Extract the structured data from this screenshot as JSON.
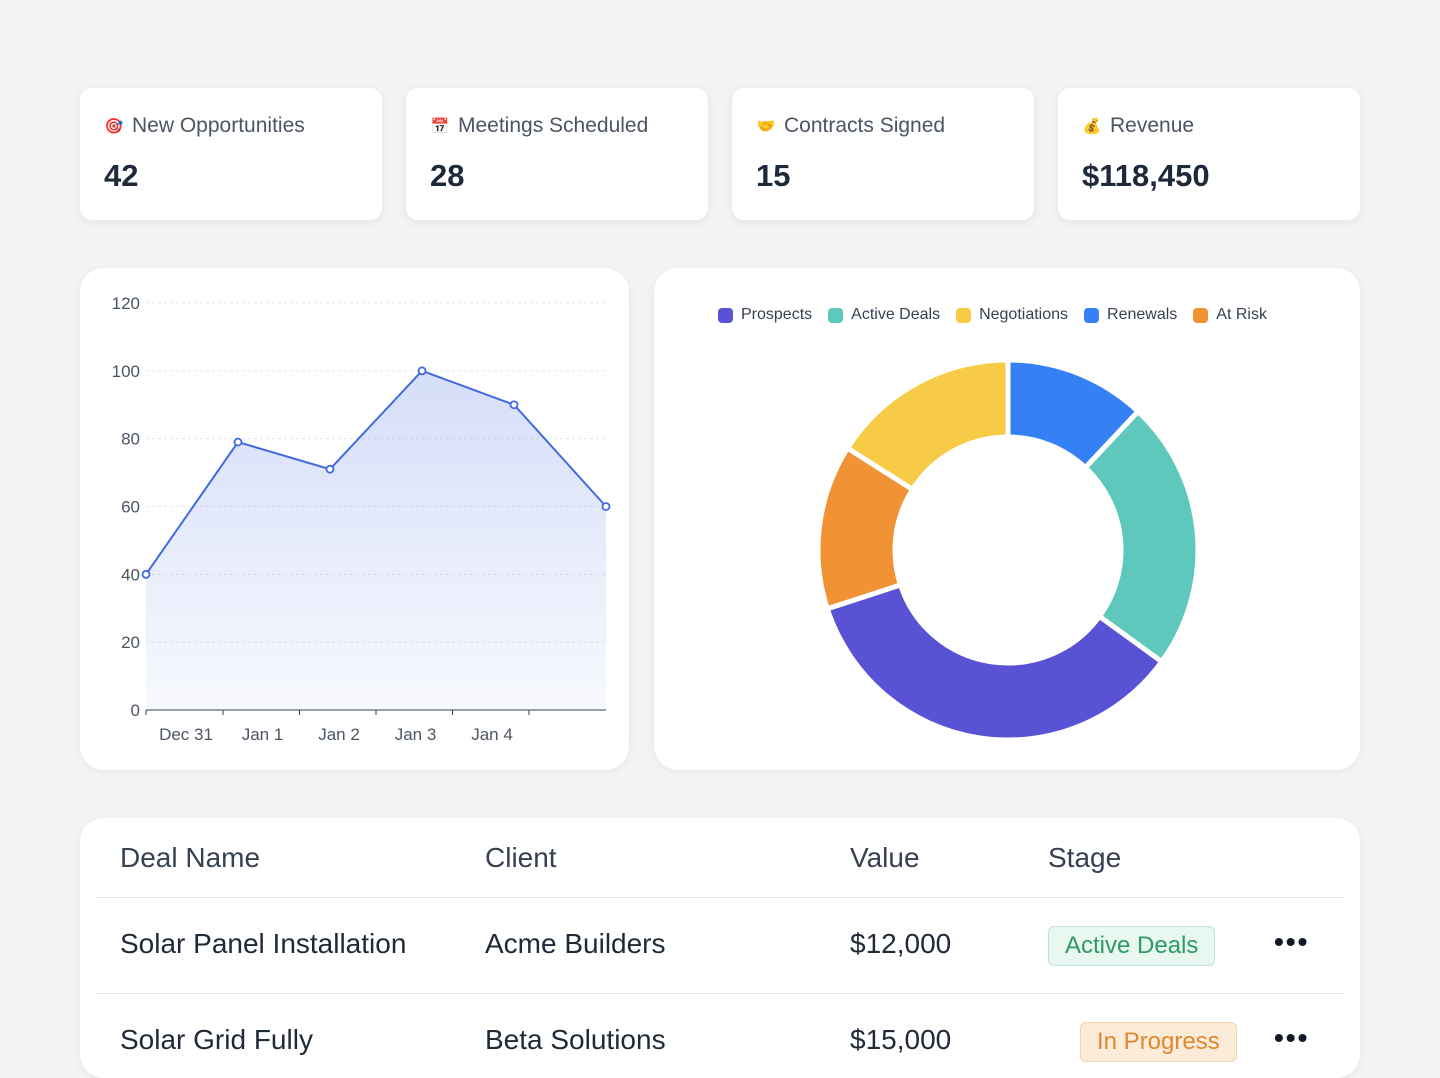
{
  "stats": [
    {
      "icon": "target-icon",
      "glyph": "🎯",
      "label": "New Opportunities",
      "value": "42"
    },
    {
      "icon": "calendar-icon",
      "glyph": "📅",
      "label": "Meetings Scheduled",
      "value": "28"
    },
    {
      "icon": "handshake-icon",
      "glyph": "🤝",
      "label": "Contracts Signed",
      "value": "15"
    },
    {
      "icon": "money-bag-icon",
      "glyph": "💰",
      "label": "Revenue",
      "value": "$118,450"
    }
  ],
  "line_chart": {
    "type": "area",
    "yticks": [
      "0",
      "20",
      "40",
      "60",
      "80",
      "100",
      "120"
    ],
    "ylim": [
      0,
      120
    ],
    "xticks": [
      "Dec 31",
      "Jan 1",
      "Jan 2",
      "Jan 3",
      "Jan 4"
    ],
    "values": [
      40,
      79,
      71,
      100,
      90,
      60
    ],
    "line_color": "#4169e1",
    "grid": true
  },
  "chart_data": {
    "type": "pie",
    "legend_position": "top",
    "legend": [
      {
        "label": "Prospects",
        "color": "#5a52d5"
      },
      {
        "label": "Active Deals",
        "color": "#5ec8bd"
      },
      {
        "label": "Negotiations",
        "color": "#f7cb45"
      },
      {
        "label": "Renewals",
        "color": "#3580f4"
      },
      {
        "label": "At Risk",
        "color": "#f19234"
      }
    ],
    "slices": [
      {
        "label": "Renewals",
        "value": 12
      },
      {
        "label": "Active Deals",
        "value": 23
      },
      {
        "label": "Prospects",
        "value": 35
      },
      {
        "label": "At Risk",
        "value": 14
      },
      {
        "label": "Negotiations",
        "value": 16
      }
    ]
  },
  "table": {
    "headers": [
      "Deal Name",
      "Client",
      "Value",
      "Stage"
    ],
    "rows": [
      {
        "deal": "Solar Panel Installation",
        "client": "Acme Builders",
        "value": "$12,000",
        "stage": "Active Deals",
        "badge_bg": "#e8f7ef",
        "badge_fg": "#2f9a66",
        "badge_border": "#bfe6cf",
        "more": "•••"
      },
      {
        "deal": "Solar Grid Fully",
        "client": "Beta Solutions",
        "value": "$15,000",
        "stage": "In Progress",
        "badge_bg": "#fdebd9",
        "badge_fg": "#e0882e",
        "badge_border": "#f7d3ad",
        "more": "•••"
      }
    ]
  }
}
